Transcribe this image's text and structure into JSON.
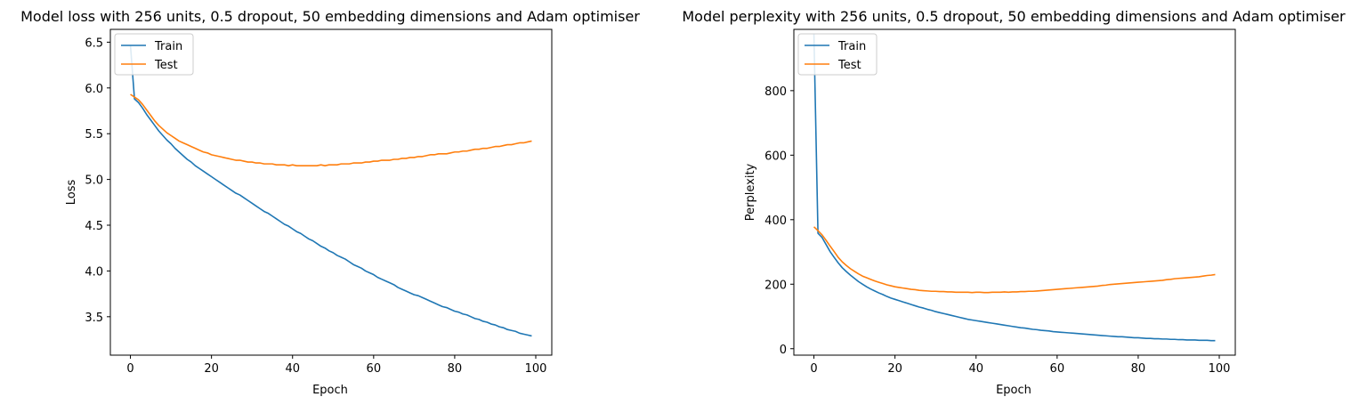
{
  "chart_data": [
    {
      "type": "line",
      "title": "Model loss with 256 units, 0.5 dropout, 50 embedding dimensions and Adam optimiser",
      "xlabel": "Epoch",
      "ylabel": "Loss",
      "xlim": [
        -4.95,
        103.95
      ],
      "ylim": [
        3.08,
        6.64
      ],
      "xticks": [
        0,
        20,
        40,
        60,
        80,
        100
      ],
      "yticks": [
        3.5,
        4.0,
        4.5,
        5.0,
        5.5,
        6.0,
        6.5
      ],
      "ytick_labels": [
        "3.5",
        "4.0",
        "4.5",
        "5.0",
        "5.5",
        "6.0",
        "6.5"
      ],
      "grid": false,
      "legend": "upper left",
      "x": [
        0,
        1,
        2,
        3,
        4,
        5,
        6,
        7,
        8,
        9,
        10,
        11,
        12,
        13,
        14,
        15,
        16,
        17,
        18,
        19,
        20,
        21,
        22,
        23,
        24,
        25,
        26,
        27,
        28,
        29,
        30,
        31,
        32,
        33,
        34,
        35,
        36,
        37,
        38,
        39,
        40,
        41,
        42,
        43,
        44,
        45,
        46,
        47,
        48,
        49,
        50,
        51,
        52,
        53,
        54,
        55,
        56,
        57,
        58,
        59,
        60,
        61,
        62,
        63,
        64,
        65,
        66,
        67,
        68,
        69,
        70,
        71,
        72,
        73,
        74,
        75,
        76,
        77,
        78,
        79,
        80,
        81,
        82,
        83,
        84,
        85,
        86,
        87,
        88,
        89,
        90,
        91,
        92,
        93,
        94,
        95,
        96,
        97,
        98,
        99
      ],
      "series": [
        {
          "name": "Train",
          "color": "#1f77b4",
          "values": [
            6.47,
            5.88,
            5.84,
            5.78,
            5.71,
            5.65,
            5.59,
            5.53,
            5.48,
            5.43,
            5.39,
            5.34,
            5.3,
            5.26,
            5.22,
            5.19,
            5.15,
            5.12,
            5.09,
            5.06,
            5.03,
            5.0,
            4.97,
            4.94,
            4.91,
            4.88,
            4.85,
            4.83,
            4.8,
            4.77,
            4.74,
            4.71,
            4.68,
            4.65,
            4.63,
            4.6,
            4.57,
            4.54,
            4.51,
            4.49,
            4.46,
            4.43,
            4.41,
            4.38,
            4.35,
            4.33,
            4.3,
            4.27,
            4.25,
            4.22,
            4.2,
            4.17,
            4.15,
            4.13,
            4.1,
            4.07,
            4.05,
            4.03,
            4.0,
            3.98,
            3.96,
            3.93,
            3.91,
            3.89,
            3.87,
            3.85,
            3.82,
            3.8,
            3.78,
            3.76,
            3.74,
            3.73,
            3.71,
            3.69,
            3.67,
            3.65,
            3.63,
            3.61,
            3.6,
            3.58,
            3.56,
            3.55,
            3.53,
            3.52,
            3.5,
            3.48,
            3.47,
            3.45,
            3.44,
            3.42,
            3.41,
            3.39,
            3.38,
            3.36,
            3.35,
            3.34,
            3.32,
            3.31,
            3.3,
            3.29
          ]
        },
        {
          "name": "Test",
          "color": "#ff7f0e",
          "values": [
            5.93,
            5.9,
            5.87,
            5.82,
            5.76,
            5.7,
            5.64,
            5.59,
            5.55,
            5.51,
            5.48,
            5.45,
            5.42,
            5.4,
            5.38,
            5.36,
            5.34,
            5.32,
            5.3,
            5.29,
            5.27,
            5.26,
            5.25,
            5.24,
            5.23,
            5.22,
            5.21,
            5.21,
            5.2,
            5.19,
            5.19,
            5.18,
            5.18,
            5.17,
            5.17,
            5.17,
            5.16,
            5.16,
            5.16,
            5.15,
            5.16,
            5.15,
            5.15,
            5.15,
            5.15,
            5.15,
            5.15,
            5.16,
            5.15,
            5.16,
            5.16,
            5.16,
            5.17,
            5.17,
            5.17,
            5.18,
            5.18,
            5.18,
            5.19,
            5.19,
            5.2,
            5.2,
            5.21,
            5.21,
            5.21,
            5.22,
            5.22,
            5.23,
            5.23,
            5.24,
            5.24,
            5.25,
            5.25,
            5.26,
            5.27,
            5.27,
            5.28,
            5.28,
            5.28,
            5.29,
            5.3,
            5.3,
            5.31,
            5.31,
            5.32,
            5.33,
            5.33,
            5.34,
            5.34,
            5.35,
            5.36,
            5.36,
            5.37,
            5.38,
            5.38,
            5.39,
            5.4,
            5.4,
            5.41,
            5.42
          ]
        }
      ]
    },
    {
      "type": "line",
      "title": "Model perplexity with 256 units, 0.5 dropout, 50 embedding dimensions and Adam optimiser",
      "xlabel": "Epoch",
      "ylabel": "Perplexity",
      "xlim": [
        -4.95,
        103.95
      ],
      "ylim": [
        -20,
        990
      ],
      "xticks": [
        0,
        20,
        40,
        60,
        80,
        100
      ],
      "yticks": [
        0,
        200,
        400,
        600,
        800
      ],
      "ytick_labels": [
        "0",
        "200",
        "400",
        "600",
        "800"
      ],
      "grid": false,
      "legend": "upper left",
      "x": [
        0,
        1,
        2,
        3,
        4,
        5,
        6,
        7,
        8,
        9,
        10,
        11,
        12,
        13,
        14,
        15,
        16,
        17,
        18,
        19,
        20,
        21,
        22,
        23,
        24,
        25,
        26,
        27,
        28,
        29,
        30,
        31,
        32,
        33,
        34,
        35,
        36,
        37,
        38,
        39,
        40,
        41,
        42,
        43,
        44,
        45,
        46,
        47,
        48,
        49,
        50,
        51,
        52,
        53,
        54,
        55,
        56,
        57,
        58,
        59,
        60,
        61,
        62,
        63,
        64,
        65,
        66,
        67,
        68,
        69,
        70,
        71,
        72,
        73,
        74,
        75,
        76,
        77,
        78,
        79,
        80,
        81,
        82,
        83,
        84,
        85,
        86,
        87,
        88,
        89,
        90,
        91,
        92,
        93,
        94,
        95,
        96,
        97,
        98,
        99
      ],
      "series": [
        {
          "name": "Train",
          "color": "#1f77b4",
          "values": [
            975,
            358,
            345,
            323,
            301,
            283,
            266,
            251,
            239,
            228,
            218,
            208,
            200,
            192,
            185,
            179,
            173,
            168,
            162,
            157,
            153,
            149,
            145,
            141,
            137,
            133,
            129,
            126,
            122,
            119,
            115,
            112,
            109,
            106,
            103,
            100,
            97,
            94,
            91,
            89,
            87,
            85,
            83,
            81,
            79,
            77,
            75,
            73,
            71,
            69,
            67,
            65,
            64,
            62,
            60,
            59,
            57,
            56,
            55,
            53,
            52,
            51,
            50,
            49,
            48,
            47,
            46,
            45,
            44,
            43,
            42,
            41,
            40,
            39,
            38,
            37,
            37,
            36,
            35,
            34,
            34,
            33,
            32,
            32,
            31,
            31,
            30,
            30,
            29,
            29,
            28,
            28,
            27,
            27,
            27,
            26,
            26,
            26,
            25,
            25
          ]
        },
        {
          "name": "Test",
          "color": "#ff7f0e",
          "values": [
            378,
            366,
            353,
            336,
            318,
            301,
            283,
            269,
            258,
            248,
            240,
            232,
            225,
            220,
            215,
            210,
            206,
            202,
            198,
            195,
            192,
            190,
            188,
            186,
            184,
            183,
            181,
            180,
            179,
            178,
            178,
            177,
            177,
            176,
            176,
            175,
            175,
            175,
            175,
            174,
            175,
            175,
            174,
            174,
            175,
            175,
            175,
            176,
            175,
            176,
            176,
            177,
            177,
            178,
            178,
            179,
            180,
            181,
            182,
            183,
            184,
            185,
            186,
            187,
            188,
            189,
            190,
            191,
            192,
            193,
            194,
            196,
            197,
            199,
            200,
            201,
            202,
            203,
            204,
            205,
            206,
            207,
            208,
            209,
            210,
            211,
            212,
            214,
            215,
            217,
            218,
            219,
            220,
            221,
            222,
            223,
            225,
            227,
            228,
            230
          ]
        }
      ]
    }
  ]
}
